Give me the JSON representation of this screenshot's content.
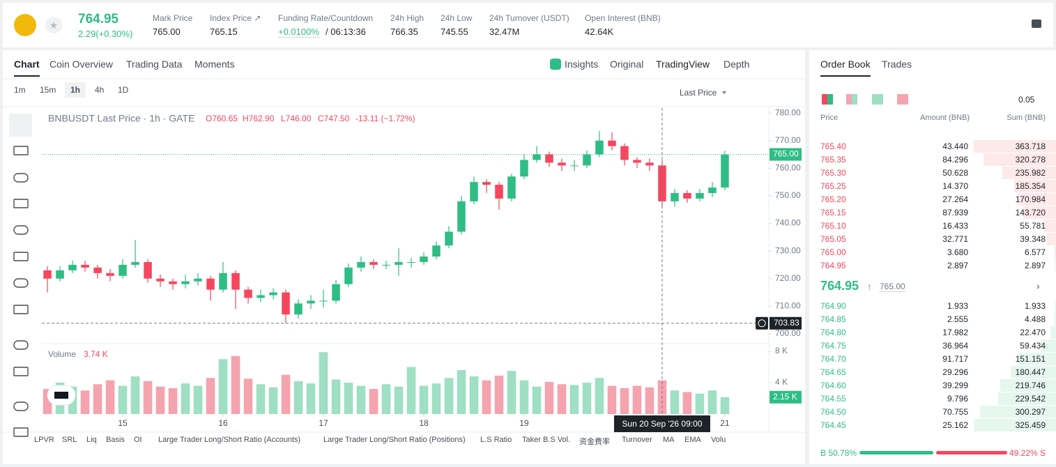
{
  "header": {
    "price": "764.95",
    "change": "2.29(+0.30%)",
    "stats": [
      {
        "label": "Mark Price",
        "value": "765.00"
      },
      {
        "label": "Index Price ↗",
        "value": "765.15"
      },
      {
        "label": "Funding Rate/Countdown",
        "value": "+0.0100%",
        "extra": "/ 06:13:36"
      },
      {
        "label": "24h High",
        "value": "766.35"
      },
      {
        "label": "24h Low",
        "value": "745.55"
      },
      {
        "label": "24h Turnover (USDT)",
        "value": "32.47M"
      },
      {
        "label": "Open Interest (BNB)",
        "value": "42.64K"
      }
    ]
  },
  "tabs": [
    "Chart",
    "Coin Overview",
    "Trading Data",
    "Moments"
  ],
  "views": [
    "Insights",
    "Original",
    "TradingView",
    "Depth"
  ],
  "intervals": [
    "1m",
    "15m",
    "1h",
    "4h",
    "1D"
  ],
  "price_type": "Last Price",
  "legend": {
    "symbol": "BNBUSDT Last Price · 1h · GATE",
    "open": "O760.65",
    "high": "H762.90",
    "low": "L746.00",
    "close": "C747.50",
    "change": "-13.11 (−1.72%)"
  },
  "chart_data": {
    "type": "candlestick",
    "up_color": "#2ebd85",
    "down_color": "#f6465d",
    "x": [
      14.25,
      14.375,
      14.5,
      14.625,
      14.75,
      14.875,
      15,
      15.125,
      15.25,
      15.375,
      15.5,
      15.625,
      15.75,
      15.875,
      16,
      16.125,
      16.25,
      16.375,
      16.5,
      16.625,
      16.75,
      16.875,
      17,
      17.125,
      17.25,
      17.375,
      17.5,
      17.625,
      17.75,
      17.875,
      18,
      18.125,
      18.25,
      18.375,
      18.5,
      18.625,
      18.75,
      18.875,
      19,
      19.125,
      19.25,
      19.375,
      19.5,
      19.625,
      19.75,
      19.875,
      20,
      20.125,
      20.25,
      20.375,
      20.5,
      20.625,
      20.75,
      20.875,
      21
    ],
    "open": [
      723,
      720,
      723,
      725,
      724,
      722,
      721,
      725,
      726,
      720,
      719,
      718,
      719,
      720,
      716,
      722,
      716,
      713,
      714,
      715,
      707,
      711,
      712,
      712,
      718,
      724,
      726,
      725,
      725,
      726,
      726,
      728,
      732,
      737,
      748,
      755,
      754,
      749,
      757,
      763,
      765,
      762,
      761,
      761,
      765,
      770,
      768,
      763,
      762,
      761,
      748,
      751,
      749,
      751,
      753
    ],
    "high": [
      724.5,
      724.5,
      726.5,
      726.5,
      725,
      723.5,
      727,
      734,
      727,
      721.5,
      720,
      721.5,
      722,
      721,
      726,
      723,
      717,
      716,
      716.5,
      716,
      712.5,
      714,
      716,
      719.5,
      725.5,
      728,
      727,
      726.5,
      731,
      727.5,
      729.5,
      733.5,
      739,
      750,
      757,
      756,
      755,
      758,
      765,
      768,
      766,
      763.5,
      763,
      766.5,
      773.5,
      773,
      769,
      764,
      763.5,
      763,
      752.5,
      752,
      752.5,
      755,
      766.35
    ],
    "low": [
      715,
      719,
      722,
      722.5,
      720,
      719,
      720,
      724,
      718.5,
      717,
      716,
      716.5,
      717.5,
      712,
      715,
      709,
      711,
      711.5,
      712.5,
      703.83,
      705.5,
      709,
      709.5,
      711,
      717,
      722.5,
      723.5,
      723.5,
      721,
      724,
      725,
      727,
      731,
      736,
      747,
      751,
      745,
      748,
      756,
      762,
      760.5,
      759,
      759,
      760,
      764,
      766.5,
      761,
      760,
      759,
      745.5,
      746,
      747.5,
      748,
      749.5,
      752
    ],
    "close": [
      720,
      723,
      725,
      724,
      722,
      721,
      725,
      726,
      720,
      719,
      718,
      719,
      720,
      716,
      722,
      716,
      713,
      714,
      715,
      707,
      711,
      712,
      712,
      718,
      724,
      726,
      725,
      725,
      726,
      726,
      728,
      732,
      737,
      748,
      755,
      754,
      749,
      757,
      763,
      765,
      762,
      761,
      761,
      765,
      770,
      768,
      763,
      762,
      761,
      748,
      751,
      749,
      751,
      753,
      764.95
    ],
    "xlim": [
      14.194,
      21.438
    ],
    "xticks": [
      15,
      16,
      17,
      18,
      19,
      21
    ],
    "ylim": [
      696.7,
      781.8
    ],
    "yticks": [
      {
        "value": 780,
        "label": "780.00"
      },
      {
        "value": 770,
        "label": "770.00"
      },
      {
        "value": 760,
        "label": "760.00"
      },
      {
        "value": 750,
        "label": "750.00"
      },
      {
        "value": 740,
        "label": "740.00"
      },
      {
        "value": 730,
        "label": "730.00"
      },
      {
        "value": 720,
        "label": "720.00"
      },
      {
        "value": 710,
        "label": "710.00"
      },
      {
        "value": 700,
        "label": "700.00"
      }
    ],
    "last_price": {
      "value": 765,
      "label": "765.00"
    },
    "crosshair": {
      "x": 20.375,
      "x_label": "Sun 20 Sep '26  09:00",
      "y": 703.83
    },
    "volume": {
      "name": "Volume",
      "current": "3.74 K",
      "ylim": [
        0,
        8.8
      ],
      "yticks": [
        {
          "value": 8,
          "label": "8 K"
        },
        {
          "value": 4,
          "label": "4 K"
        }
      ],
      "last": {
        "value": 2.15,
        "label": "2.15 K"
      },
      "values": [
        3.2,
        4.0,
        3.5,
        3.0,
        3.8,
        4.3,
        3.6,
        4.8,
        4.2,
        3.5,
        3.3,
        3.9,
        3.6,
        4.6,
        7.0,
        7.4,
        4.5,
        3.8,
        3.4,
        5.0,
        4.2,
        3.9,
        7.9,
        4.4,
        4.0,
        3.6,
        3.2,
        3.8,
        3.5,
        6.0,
        3.6,
        3.9,
        4.6,
        5.6,
        4.8,
        4.3,
        4.9,
        5.5,
        4.3,
        3.5,
        4.1,
        3.8,
        3.7,
        4.0,
        4.6,
        3.6,
        3.3,
        3.6,
        3.4,
        4.3,
        3.0,
        2.8,
        2.6,
        3.0,
        2.15
      ]
    }
  },
  "indicators": [
    "LPVR",
    "SRL",
    "Liq",
    "Basis",
    "OI",
    "Large Trader Long/Short Ratio (Accounts)",
    "Large Trader Long/Short Ratio (Positions)",
    "L.S Ratio",
    "Taker B.S Vol.",
    "资金费率",
    "Turnover",
    "MA",
    "EMA",
    "Volu"
  ],
  "order_book": {
    "tabs": [
      "Order Book",
      "Trades"
    ],
    "step": "0.05",
    "columns": [
      "Price",
      "Amount (BNB)",
      "Sum (BNB)"
    ],
    "asks": [
      [
        "765.40",
        "43.440",
        "363.718"
      ],
      [
        "765.35",
        "84.296",
        "320.278"
      ],
      [
        "765.30",
        "50.628",
        "235.982"
      ],
      [
        "765.25",
        "14.370",
        "185.354"
      ],
      [
        "765.20",
        "27.264",
        "170.984"
      ],
      [
        "765.15",
        "87.939",
        "143.720"
      ],
      [
        "765.10",
        "16.433",
        "55.781"
      ],
      [
        "765.05",
        "32.771",
        "39.348"
      ],
      [
        "765.00",
        "3.680",
        "6.577"
      ],
      [
        "764.95",
        "2.897",
        "2.897"
      ]
    ],
    "mid": {
      "price": "764.95",
      "mark": "765.00"
    },
    "bids": [
      [
        "764.90",
        "1.933",
        "1.933"
      ],
      [
        "764.85",
        "2.555",
        "4.488"
      ],
      [
        "764.80",
        "17.982",
        "22.470"
      ],
      [
        "764.75",
        "36.964",
        "59.434"
      ],
      [
        "764.70",
        "91.717",
        "151.151"
      ],
      [
        "764.65",
        "29.296",
        "180.447"
      ],
      [
        "764.60",
        "39.299",
        "219.746"
      ],
      [
        "764.55",
        "9.796",
        "229.542"
      ],
      [
        "764.50",
        "70.755",
        "300.297"
      ],
      [
        "764.45",
        "25.162",
        "325.459"
      ]
    ],
    "ratio": {
      "buy": {
        "value": 50.78,
        "label": "B 50.78%"
      },
      "sell": {
        "value": 49.22,
        "label": "49.22% S"
      }
    }
  }
}
